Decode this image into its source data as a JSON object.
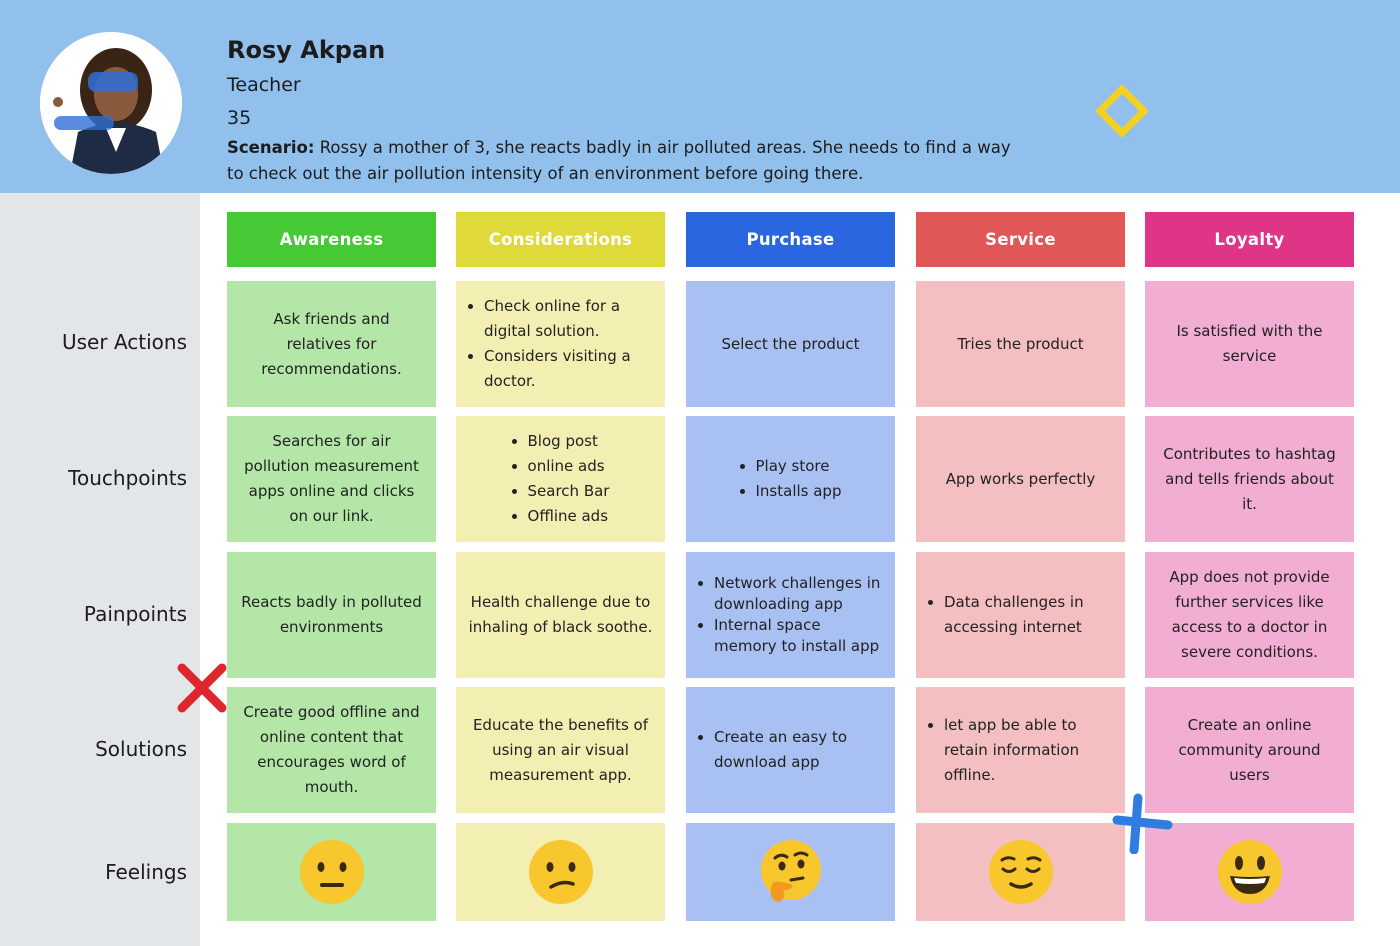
{
  "persona": {
    "name": "Rosy Akpan",
    "role": "Teacher",
    "age": "35",
    "scenario_label": "Scenario:",
    "scenario_text": " Rossy a mother of 3, she reacts badly in air polluted areas. She needs to find a way to check out the air pollution intensity of an environment before going there."
  },
  "row_labels": [
    "User Actions",
    "Touchpoints",
    "Painpoints",
    "Solutions",
    "Feelings"
  ],
  "stages": [
    {
      "name": "Awareness",
      "color": "#45c935",
      "cell_color": "#b3e6a7"
    },
    {
      "name": "Considerations",
      "color": "#e0d93a",
      "cell_color": "#f3efb2"
    },
    {
      "name": "Purchase",
      "color": "#2a66e0",
      "cell_color": "#a9c0f2"
    },
    {
      "name": "Service",
      "color": "#e15656",
      "cell_color": "#f4bfc1"
    },
    {
      "name": "Loyalty",
      "color": "#de3587",
      "cell_color": "#f2aed2"
    }
  ],
  "user_actions": {
    "awareness": "Ask friends and relatives for recommendations.",
    "considerations": [
      "Check online for a digital solution.",
      "Considers visiting a doctor."
    ],
    "purchase": "Select the product",
    "service": "Tries the product",
    "loyalty": "Is satisfied with the service"
  },
  "touchpoints": {
    "awareness": "Searches for air pollution measurement apps online and clicks on our link.",
    "considerations": [
      "Blog post",
      "online ads",
      "Search Bar",
      "Offline ads"
    ],
    "purchase": [
      "Play store",
      "Installs app"
    ],
    "service": "App works perfectly",
    "loyalty": "Contributes to hashtag and tells friends about it."
  },
  "painpoints": {
    "awareness": "Reacts badly in polluted environments",
    "considerations": "Health challenge due to inhaling of black soothe.",
    "purchase": [
      "Network challenges in downloading app",
      "Internal space memory to install app"
    ],
    "service": [
      "Data challenges in accessing internet"
    ],
    "loyalty": "App does not provide further services like access to a doctor in severe conditions."
  },
  "solutions": {
    "awareness": "Create good offline and online content that encourages word of mouth.",
    "considerations": "Educate the benefits of using an air visual measurement app.",
    "purchase": [
      "Create an easy to download app"
    ],
    "service": [
      "let app be able to retain information offline."
    ],
    "loyalty": "Create an online community around users"
  },
  "feelings": {
    "awareness": "neutral-face-icon",
    "considerations": "confused-face-icon",
    "purchase": "thinking-face-icon",
    "service": "relieved-face-icon",
    "loyalty": "smiley-face-icon"
  },
  "decor": {
    "diamond_color": "#f2d024",
    "red_cross_color": "#e0262d",
    "blue_cross_color": "#2f7de0",
    "emoji_color": "#f8c72e"
  }
}
